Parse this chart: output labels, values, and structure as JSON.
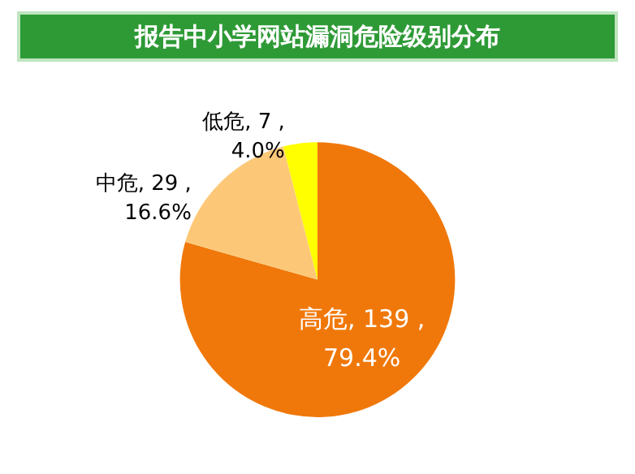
{
  "chart_data": {
    "type": "pie",
    "title": "报告中小学网站漏洞危险级别分布",
    "categories": [
      "高危",
      "中危",
      "低危"
    ],
    "values": [
      139,
      29,
      7
    ],
    "colors": [
      "#f0780a",
      "#fcc878",
      "#ffff00"
    ],
    "value_labels": [
      "139 ,\n79.4%",
      "29 ,\n16.6%",
      "7 ,\n4.0%"
    ],
    "legend": false
  }
}
